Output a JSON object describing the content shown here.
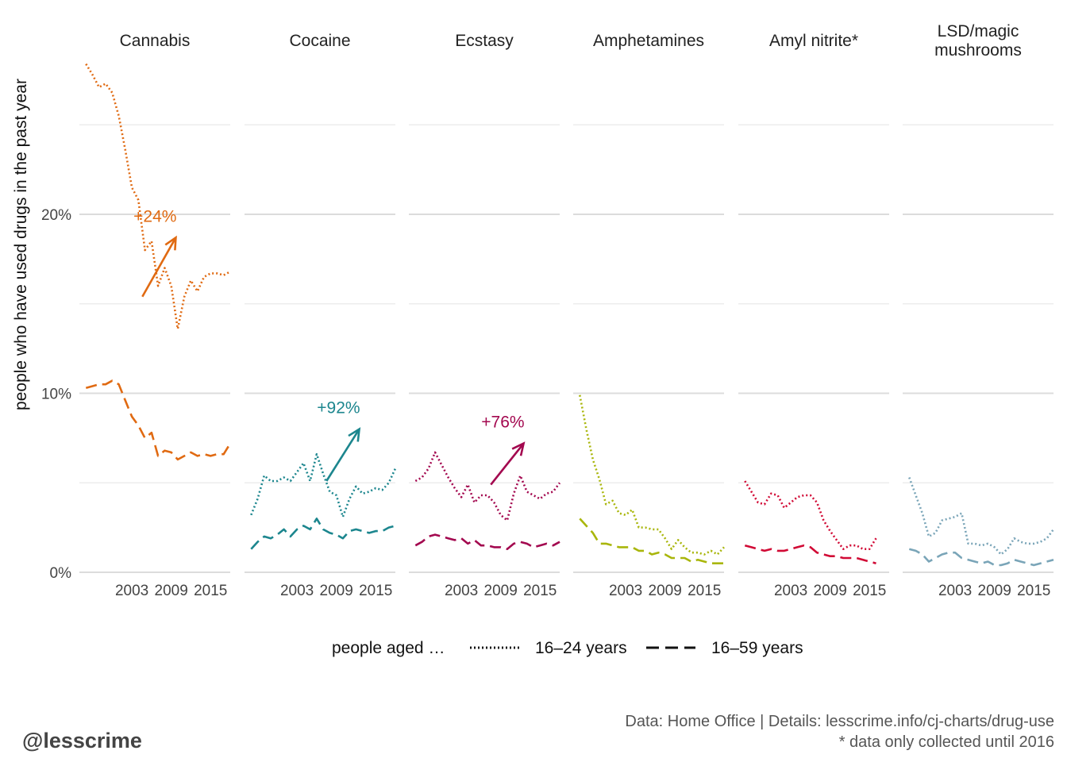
{
  "chart_data": {
    "type": "line",
    "ylabel": "people who have used drugs in the past year",
    "yticks": [
      0,
      10,
      20
    ],
    "yticklabels": [
      "0%",
      "10%",
      "20%"
    ],
    "ylim": [
      0,
      28.5
    ],
    "xlim": [
      1995,
      2018
    ],
    "xticks": [
      2003,
      2009,
      2015
    ],
    "legend": {
      "title": "people aged …",
      "entries": [
        "16–24 years",
        "16–59 years"
      ]
    },
    "panels": [
      {
        "name": "Cannabis",
        "color": "#e06a12",
        "annotation": "+24%",
        "arrow": {
          "from": [
            2004.6,
            15.4
          ],
          "to": [
            2009.7,
            18.7
          ]
        },
        "series": [
          {
            "name": "16–24 years",
            "style": "dotted",
            "x": [
              1996,
              1997,
              1998,
              1999,
              2000,
              2001,
              2002,
              2003,
              2004,
              2005,
              2006,
              2007,
              2008,
              2009,
              2010,
              2011,
              2012,
              2013,
              2014,
              2015,
              2016,
              2017,
              2018
            ],
            "y": [
              28.4,
              27.8,
              27.1,
              27.3,
              26.8,
              25.5,
              23.6,
              21.5,
              20.8,
              18.0,
              18.5,
              16.0,
              17.0,
              16.0,
              13.6,
              15.4,
              16.3,
              15.7,
              16.5,
              16.7,
              16.7,
              16.6,
              16.8
            ]
          },
          {
            "name": "16–59 years",
            "style": "dashed",
            "x": [
              1996,
              1997,
              1998,
              1999,
              2000,
              2001,
              2002,
              2003,
              2004,
              2005,
              2006,
              2007,
              2008,
              2009,
              2010,
              2011,
              2012,
              2013,
              2014,
              2015,
              2016,
              2017,
              2018
            ],
            "y": [
              10.3,
              10.4,
              10.5,
              10.5,
              10.7,
              10.5,
              9.6,
              8.7,
              8.2,
              7.5,
              7.8,
              6.5,
              6.8,
              6.7,
              6.3,
              6.5,
              6.7,
              6.5,
              6.6,
              6.5,
              6.6,
              6.6,
              7.2
            ]
          }
        ]
      },
      {
        "name": "Cocaine",
        "color": "#1c868e",
        "annotation": "+92%",
        "arrow": {
          "from": [
            2007.5,
            5.1
          ],
          "to": [
            2012.5,
            8.0
          ]
        },
        "series": [
          {
            "name": "16–24 years",
            "style": "dotted",
            "x": [
              1996,
              1997,
              1998,
              1999,
              2000,
              2001,
              2002,
              2003,
              2004,
              2005,
              2006,
              2007,
              2008,
              2009,
              2010,
              2011,
              2012,
              2013,
              2014,
              2015,
              2016,
              2017,
              2018
            ],
            "y": [
              3.2,
              4.1,
              5.4,
              5.1,
              5.1,
              5.3,
              5.1,
              5.6,
              6.1,
              5.1,
              6.6,
              5.5,
              4.5,
              4.3,
              3.1,
              4.1,
              4.8,
              4.4,
              4.5,
              4.7,
              4.6,
              5.0,
              5.8
            ]
          },
          {
            "name": "16–59 years",
            "style": "dashed",
            "x": [
              1996,
              1997,
              1998,
              1999,
              2000,
              2001,
              2002,
              2003,
              2004,
              2005,
              2006,
              2007,
              2008,
              2009,
              2010,
              2011,
              2012,
              2013,
              2014,
              2015,
              2016,
              2017,
              2018
            ],
            "y": [
              1.3,
              1.7,
              2.0,
              1.9,
              2.1,
              2.4,
              2.0,
              2.4,
              2.6,
              2.4,
              3.0,
              2.4,
              2.2,
              2.1,
              1.9,
              2.3,
              2.4,
              2.3,
              2.2,
              2.3,
              2.3,
              2.5,
              2.6
            ]
          }
        ]
      },
      {
        "name": "Ecstasy",
        "color": "#a3084f",
        "annotation": "+76%",
        "arrow": {
          "from": [
            2007.5,
            4.9
          ],
          "to": [
            2012.5,
            7.2
          ]
        },
        "series": [
          {
            "name": "16–24 years",
            "style": "dotted",
            "x": [
              1996,
              1997,
              1998,
              1999,
              2000,
              2001,
              2002,
              2003,
              2004,
              2005,
              2006,
              2007,
              2008,
              2009,
              2010,
              2011,
              2012,
              2013,
              2014,
              2015,
              2016,
              2017,
              2018
            ],
            "y": [
              5.1,
              5.3,
              5.8,
              6.7,
              6.0,
              5.3,
              4.7,
              4.2,
              4.9,
              3.9,
              4.3,
              4.3,
              3.9,
              3.2,
              2.9,
              4.4,
              5.4,
              4.5,
              4.3,
              4.1,
              4.4,
              4.5,
              5.0
            ]
          },
          {
            "name": "16–59 years",
            "style": "dashed",
            "x": [
              1996,
              1997,
              1998,
              1999,
              2000,
              2001,
              2002,
              2003,
              2004,
              2005,
              2006,
              2007,
              2008,
              2009,
              2010,
              2011,
              2012,
              2013,
              2014,
              2015,
              2016,
              2017,
              2018
            ],
            "y": [
              1.5,
              1.7,
              2.0,
              2.1,
              2.0,
              1.9,
              1.8,
              1.9,
              1.6,
              1.8,
              1.5,
              1.5,
              1.4,
              1.4,
              1.3,
              1.6,
              1.7,
              1.6,
              1.4,
              1.5,
              1.6,
              1.5,
              1.7
            ]
          }
        ]
      },
      {
        "name": "Amphetamines",
        "color": "#a9b60b",
        "annotation": "",
        "arrow": null,
        "series": [
          {
            "name": "16–24 years",
            "style": "dotted",
            "x": [
              1996,
              1997,
              1998,
              1999,
              2000,
              2001,
              2002,
              2003,
              2004,
              2005,
              2006,
              2007,
              2008,
              2009,
              2010,
              2011,
              2012,
              2013,
              2014,
              2015,
              2016,
              2017,
              2018
            ],
            "y": [
              9.9,
              8.0,
              6.3,
              5.2,
              3.8,
              4.0,
              3.3,
              3.2,
              3.5,
              2.5,
              2.5,
              2.4,
              2.4,
              1.9,
              1.3,
              1.8,
              1.4,
              1.1,
              1.1,
              1.0,
              1.2,
              1.0,
              1.4
            ]
          },
          {
            "name": "16–59 years",
            "style": "dashed",
            "x": [
              1996,
              1997,
              1998,
              1999,
              2000,
              2001,
              2002,
              2003,
              2004,
              2005,
              2006,
              2007,
              2008,
              2009,
              2010,
              2011,
              2012,
              2013,
              2014,
              2015,
              2016,
              2017,
              2018
            ],
            "y": [
              3.0,
              2.6,
              2.2,
              1.6,
              1.6,
              1.5,
              1.4,
              1.4,
              1.4,
              1.2,
              1.2,
              1.0,
              1.1,
              1.0,
              0.8,
              0.8,
              0.8,
              0.6,
              0.7,
              0.6,
              0.5,
              0.5,
              0.5
            ]
          }
        ]
      },
      {
        "name": "Amyl nitrite*",
        "color": "#d10a35",
        "annotation": "",
        "arrow": null,
        "series": [
          {
            "name": "16–24 years",
            "style": "dotted",
            "x": [
              1996,
              1997,
              1998,
              1999,
              2000,
              2001,
              2002,
              2003,
              2004,
              2005,
              2006,
              2007,
              2008,
              2009,
              2010,
              2011,
              2012,
              2013,
              2014,
              2015,
              2016
            ],
            "y": [
              5.1,
              4.5,
              3.9,
              3.8,
              4.4,
              4.3,
              3.6,
              3.9,
              4.2,
              4.3,
              4.3,
              3.9,
              2.9,
              2.3,
              1.8,
              1.3,
              1.5,
              1.5,
              1.3,
              1.3,
              1.9
            ]
          },
          {
            "name": "16–59 years",
            "style": "dashed",
            "x": [
              1996,
              1997,
              1998,
              1999,
              2000,
              2001,
              2002,
              2003,
              2004,
              2005,
              2006,
              2007,
              2008,
              2009,
              2010,
              2011,
              2012,
              2013,
              2014,
              2015,
              2016
            ],
            "y": [
              1.5,
              1.4,
              1.3,
              1.2,
              1.3,
              1.2,
              1.2,
              1.3,
              1.4,
              1.5,
              1.4,
              1.1,
              1.0,
              0.9,
              0.9,
              0.8,
              0.8,
              0.8,
              0.7,
              0.6,
              0.5
            ]
          }
        ]
      },
      {
        "name": "LSD/magic mushrooms",
        "color": "#7aa5b8",
        "annotation": "",
        "arrow": null,
        "series": [
          {
            "name": "16–24 years",
            "style": "dotted",
            "x": [
              1996,
              1997,
              1998,
              1999,
              2000,
              2001,
              2002,
              2003,
              2004,
              2005,
              2006,
              2007,
              2008,
              2009,
              2010,
              2011,
              2012,
              2013,
              2014,
              2015,
              2016,
              2017,
              2018
            ],
            "y": [
              5.3,
              4.3,
              3.3,
              2.0,
              2.2,
              2.9,
              3.0,
              3.1,
              3.3,
              1.6,
              1.6,
              1.5,
              1.6,
              1.4,
              1.0,
              1.3,
              1.9,
              1.7,
              1.6,
              1.6,
              1.7,
              1.9,
              2.4
            ]
          },
          {
            "name": "16–59 years",
            "style": "dashed",
            "x": [
              1996,
              1997,
              1998,
              1999,
              2000,
              2001,
              2002,
              2003,
              2004,
              2005,
              2006,
              2007,
              2008,
              2009,
              2010,
              2011,
              2012,
              2013,
              2014,
              2015,
              2016,
              2017,
              2018
            ],
            "y": [
              1.3,
              1.2,
              1.0,
              0.6,
              0.8,
              1.0,
              1.1,
              1.1,
              0.8,
              0.7,
              0.6,
              0.5,
              0.6,
              0.4,
              0.4,
              0.5,
              0.7,
              0.6,
              0.5,
              0.4,
              0.5,
              0.6,
              0.7
            ]
          }
        ]
      }
    ]
  },
  "footer": {
    "source": "Data: Home Office |  Details: lesscrime.info/cj-charts/drug-use",
    "note": "* data only collected until 2016",
    "handle": "@lesscrime"
  }
}
